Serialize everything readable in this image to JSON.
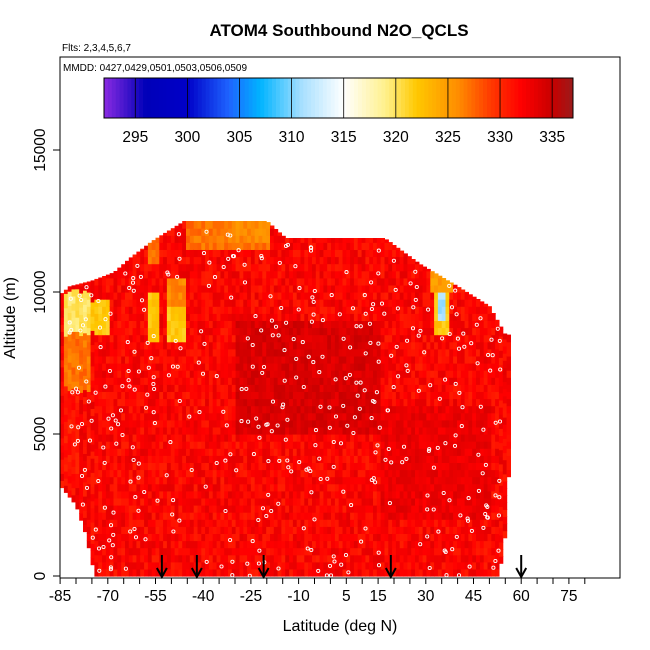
{
  "chart_data": {
    "type": "heatmap",
    "title": "ATOM4 Southbound N2O_QCLS",
    "flights_note": "Flts: 2,3,4,5,6,7",
    "dates_note": "MMDD: 0427,0429,0501,0503,0506,0509",
    "xlabel": "Latitude (deg N)",
    "ylabel": "Altitude (m)",
    "xlim": [
      -88,
      88
    ],
    "ylim": [
      0,
      18000
    ],
    "x_ticks": [
      -85,
      -70,
      -55,
      -40,
      -25,
      -10,
      5,
      15,
      30,
      45,
      60,
      75
    ],
    "y_ticks": [
      0,
      5000,
      10000,
      15000
    ],
    "x_tick_labels": [
      "-85",
      "-70",
      "-55",
      "-40",
      "-25",
      "-10",
      "5",
      "15",
      "30",
      "45",
      "60",
      "75"
    ],
    "y_tick_labels": [
      "0",
      "5000",
      "10000",
      "15000"
    ],
    "colorbar": {
      "range": [
        292,
        337
      ],
      "ticks": [
        295,
        300,
        305,
        310,
        315,
        320,
        325,
        330,
        335
      ],
      "tick_labels": [
        "295",
        "300",
        "305",
        "310",
        "315",
        "320",
        "325",
        "330",
        "335"
      ],
      "stops": [
        {
          "v": 292,
          "c": "#8a2be2"
        },
        {
          "v": 296,
          "c": "#0000b8"
        },
        {
          "v": 300,
          "c": "#0000c8"
        },
        {
          "v": 304,
          "c": "#1e64ff"
        },
        {
          "v": 307,
          "c": "#00b4ff"
        },
        {
          "v": 311,
          "c": "#a8e0ff"
        },
        {
          "v": 315,
          "c": "#ffffff"
        },
        {
          "v": 319,
          "c": "#fff08c"
        },
        {
          "v": 322,
          "c": "#ffc800"
        },
        {
          "v": 326,
          "c": "#ff8c00"
        },
        {
          "v": 329,
          "c": "#ff3c00"
        },
        {
          "v": 332,
          "c": "#ff0000"
        },
        {
          "v": 335,
          "c": "#c80000"
        },
        {
          "v": 337,
          "c": "#9b1b1b"
        }
      ]
    },
    "data_extent": {
      "top_altitude_profile": [
        [
          -85,
          9900
        ],
        [
          -82,
          10200
        ],
        [
          -75,
          10400
        ],
        [
          -68,
          10700
        ],
        [
          -63,
          11200
        ],
        [
          -56,
          11800
        ],
        [
          -46,
          12500
        ],
        [
          -20,
          12500
        ],
        [
          -14,
          11900
        ],
        [
          17,
          11900
        ],
        [
          28,
          11000
        ],
        [
          40,
          10200
        ],
        [
          50,
          9500
        ],
        [
          55,
          8500
        ]
      ],
      "bottom_altitude_profile": [
        [
          -85,
          3200
        ],
        [
          -80,
          2500
        ],
        [
          -77,
          1500
        ],
        [
          -74,
          0
        ],
        [
          53,
          0
        ],
        [
          55,
          1500
        ],
        [
          56,
          3500
        ]
      ]
    },
    "cells": [
      {
        "lat": [
          -84,
          -76
        ],
        "alt": [
          8400,
          9900
        ],
        "value": 320
      },
      {
        "lat": [
          -84,
          -76
        ],
        "alt": [
          6500,
          8400
        ],
        "value": 327
      },
      {
        "lat": [
          -76,
          -70
        ],
        "alt": [
          8500,
          9600
        ],
        "value": 322
      },
      {
        "lat": [
          -58,
          -54
        ],
        "alt": [
          8300,
          9800
        ],
        "value": 322
      },
      {
        "lat": [
          -52,
          -46
        ],
        "alt": [
          8200,
          9600
        ],
        "value": 322
      },
      {
        "lat": [
          -52,
          -46
        ],
        "alt": [
          9600,
          10300
        ],
        "value": 326
      },
      {
        "lat": [
          -46,
          -20
        ],
        "alt": [
          11500,
          12500
        ],
        "value": 327
      },
      {
        "lat": [
          -58,
          -54
        ],
        "alt": [
          11000,
          11800
        ],
        "value": 327
      },
      {
        "lat": [
          -32,
          -20
        ],
        "alt": [
          11700,
          12400
        ],
        "value": 326
      },
      {
        "lat": [
          32,
          37
        ],
        "alt": [
          8600,
          10100
        ],
        "value": 322
      },
      {
        "lat": [
          34,
          36
        ],
        "alt": [
          8900,
          9800
        ],
        "value": 311
      },
      {
        "lat": [
          31,
          38
        ],
        "alt": [
          10100,
          10800
        ],
        "value": 325
      },
      {
        "lat": [
          -84,
          -80
        ],
        "alt": [
          3200,
          6500
        ],
        "value": 331
      },
      {
        "lat": [
          -30,
          15
        ],
        "alt": [
          5000,
          9000
        ],
        "value": 334
      },
      {
        "lat": [
          15,
          50
        ],
        "alt": [
          2000,
          6000
        ],
        "value": 333
      }
    ],
    "default_value": 332,
    "flight_markers_lat": [
      -53,
      -42,
      -21,
      19,
      60
    ],
    "sample_point_count": 420,
    "sample_point_color": "#ffffff"
  }
}
